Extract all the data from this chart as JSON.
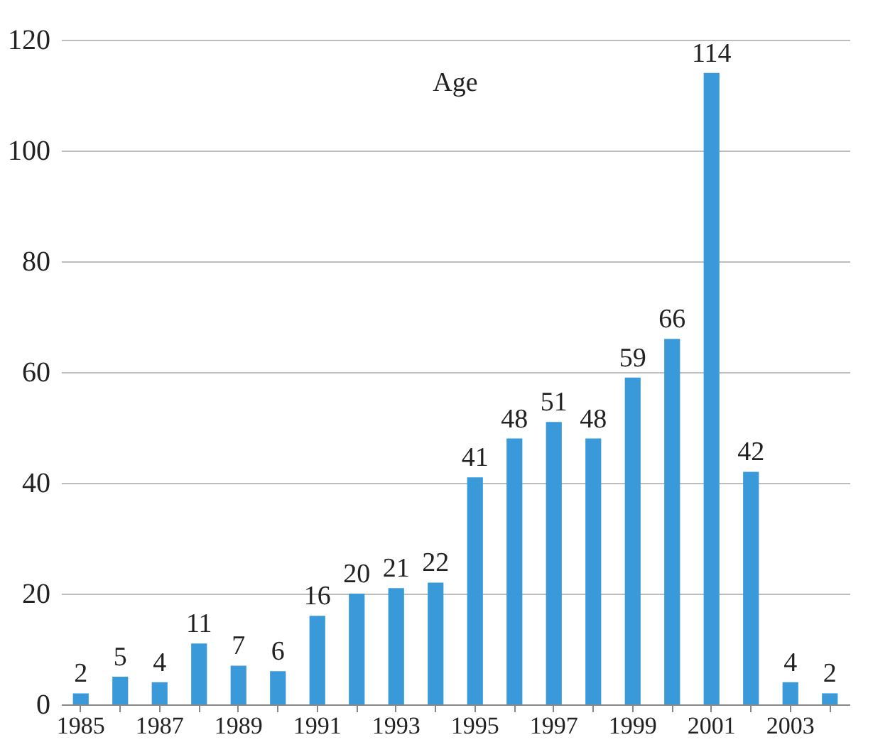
{
  "chart_data": {
    "type": "bar",
    "title": "Age",
    "categories": [
      "1985",
      null,
      "1987",
      null,
      "1989",
      null,
      "1991",
      null,
      "1993",
      null,
      "1995",
      null,
      "1997",
      null,
      "1999",
      null,
      "2001",
      null,
      "2003",
      null
    ],
    "values": [
      2,
      5,
      4,
      11,
      7,
      6,
      16,
      20,
      21,
      22,
      41,
      48,
      51,
      48,
      59,
      66,
      114,
      42,
      4,
      2
    ],
    "color": "#3a9ad9",
    "ylim": [
      0,
      120
    ],
    "yticks": [
      0,
      20,
      40,
      60,
      80,
      100,
      120
    ],
    "grid": "y",
    "data_labels": true
  }
}
